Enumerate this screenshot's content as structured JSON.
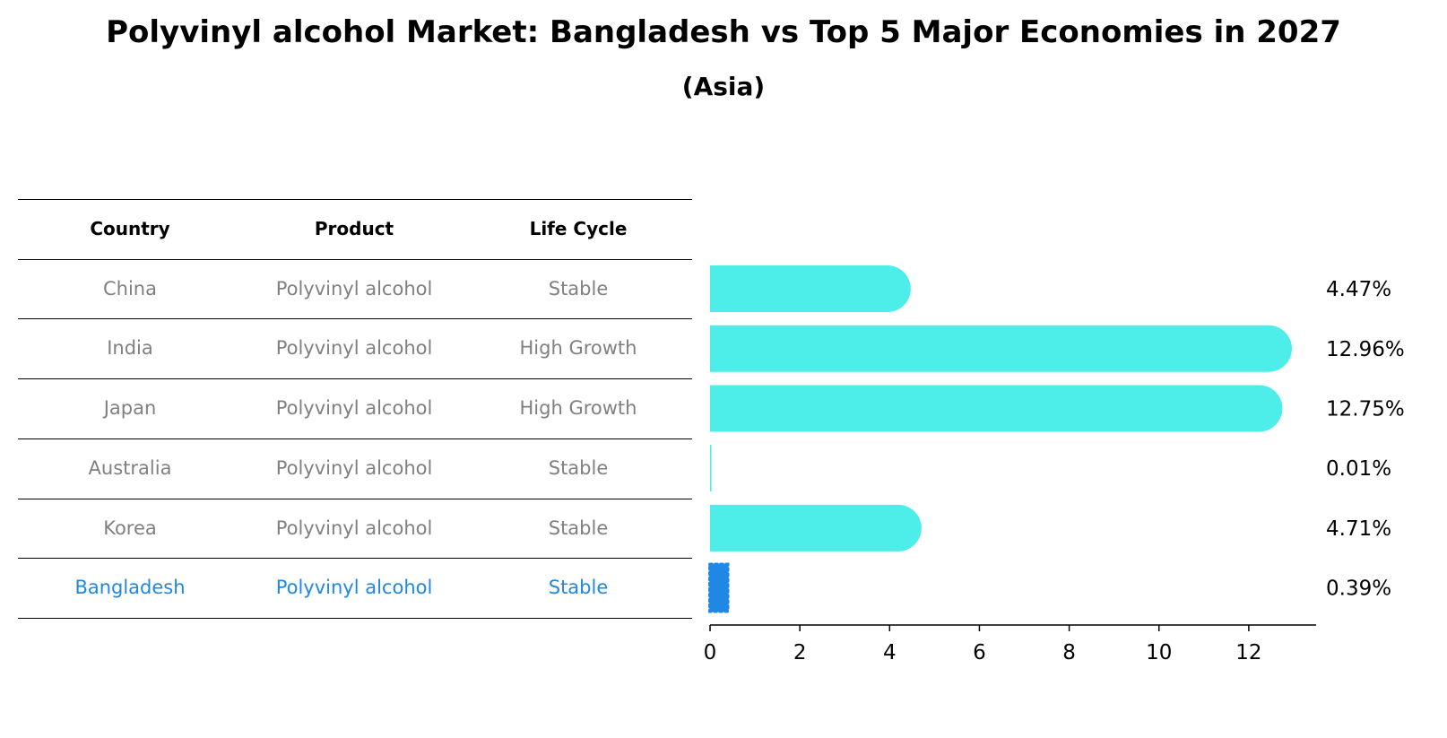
{
  "title": "Polyvinyl alcohol Market: Bangladesh vs Top 5 Major Economies in 2027",
  "subtitle": "(Asia)",
  "table": {
    "headers": [
      "Country",
      "Product",
      "Life Cycle"
    ],
    "rows": [
      {
        "country": "China",
        "product": "Polyvinyl alcohol",
        "life_cycle": "Stable",
        "highlight": false
      },
      {
        "country": "India",
        "product": "Polyvinyl alcohol",
        "life_cycle": "High Growth",
        "highlight": false
      },
      {
        "country": "Japan",
        "product": "Polyvinyl alcohol",
        "life_cycle": "High Growth",
        "highlight": false
      },
      {
        "country": "Australia",
        "product": "Polyvinyl alcohol",
        "life_cycle": "Stable",
        "highlight": false
      },
      {
        "country": "Korea",
        "product": "Polyvinyl alcohol",
        "life_cycle": "Stable",
        "highlight": false
      },
      {
        "country": "Bangladesh",
        "product": "Polyvinyl alcohol",
        "life_cycle": "Stable",
        "highlight": true
      }
    ]
  },
  "chart_data": {
    "type": "bar",
    "orientation": "horizontal",
    "categories": [
      "China",
      "India",
      "Japan",
      "Australia",
      "Korea",
      "Bangladesh"
    ],
    "values": [
      4.47,
      12.96,
      12.75,
      0.01,
      4.71,
      0.39
    ],
    "value_labels": [
      "4.47%",
      "12.96%",
      "12.75%",
      "0.01%",
      "4.71%",
      "0.39%"
    ],
    "xlim": [
      0,
      13.5
    ],
    "xticks": [
      0,
      2,
      4,
      6,
      8,
      10,
      12
    ],
    "colors": {
      "default": "#4deeea",
      "highlight": "#1f88e5"
    },
    "highlight_category": "Bangladesh",
    "grid": false
  }
}
